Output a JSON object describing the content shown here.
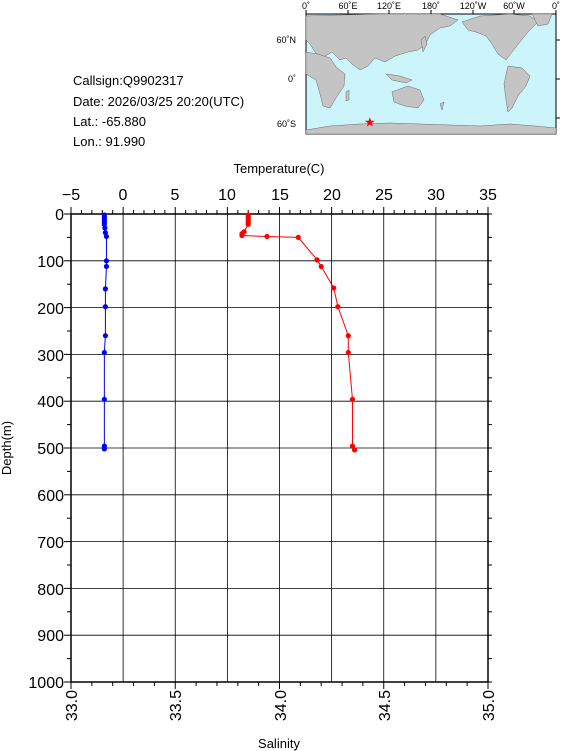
{
  "info": {
    "callsign": "Callsign:Q9902317",
    "date": "Date:  2026/03/25 20:20(UTC)",
    "lat": "Lat.:  -65.880",
    "lon": "Lon.:   91.990"
  },
  "map": {
    "lon_labels": [
      "0˚",
      "60˚E",
      "120˚E",
      "180˚",
      "120˚W",
      "60˚W",
      "0˚"
    ],
    "lat_labels": [
      "60˚N",
      "0˚",
      "60˚S"
    ],
    "marker": {
      "lon": 91.99,
      "lat": -65.88
    },
    "colors": {
      "ocean": "#ccf5fb",
      "land": "#c4c4c4",
      "marker": "#ff0000"
    }
  },
  "chart_data": {
    "type": "line",
    "ylabel": "Depth(m)",
    "ylim": [
      1000,
      0
    ],
    "y_ticks": [
      "0",
      "100",
      "200",
      "300",
      "400",
      "500",
      "600",
      "700",
      "800",
      "900",
      "1000"
    ],
    "temperature_axis": {
      "label": "Temperature(C)",
      "range": [
        -5,
        35
      ],
      "ticks": [
        "−5",
        "0",
        "5",
        "10",
        "15",
        "20",
        "25",
        "30",
        "35"
      ]
    },
    "salinity_axis": {
      "label": "Salinity",
      "range": [
        33.0,
        35.0
      ],
      "ticks": [
        "33.0",
        "33.5",
        "34.0",
        "34.5",
        "35.0"
      ]
    },
    "grid": true,
    "series": [
      {
        "axis": "temperature",
        "color": "#0000ff",
        "points": [
          [
            -1.8,
            2
          ],
          [
            -1.8,
            6
          ],
          [
            -1.8,
            10
          ],
          [
            -1.8,
            14
          ],
          [
            -1.8,
            18
          ],
          [
            -1.8,
            22
          ],
          [
            -1.75,
            30
          ],
          [
            -1.7,
            40
          ],
          [
            -1.6,
            48
          ],
          [
            -1.6,
            100
          ],
          [
            -1.6,
            112
          ],
          [
            -1.7,
            160
          ],
          [
            -1.7,
            198
          ],
          [
            -1.7,
            260
          ],
          [
            -1.8,
            296
          ],
          [
            -1.8,
            396
          ],
          [
            -1.8,
            496
          ],
          [
            -1.8,
            502
          ]
        ]
      },
      {
        "axis": "salinity",
        "color": "#ff0000",
        "points": [
          [
            33.85,
            2
          ],
          [
            33.85,
            6
          ],
          [
            33.85,
            10
          ],
          [
            33.85,
            14
          ],
          [
            33.85,
            18
          ],
          [
            33.85,
            22
          ],
          [
            33.83,
            38
          ],
          [
            33.82,
            42
          ],
          [
            33.82,
            46
          ],
          [
            33.94,
            48
          ],
          [
            34.09,
            50
          ],
          [
            34.18,
            98
          ],
          [
            34.2,
            112
          ],
          [
            34.26,
            158
          ],
          [
            34.28,
            198
          ],
          [
            34.33,
            260
          ],
          [
            34.33,
            296
          ],
          [
            34.35,
            396
          ],
          [
            34.35,
            496
          ],
          [
            34.36,
            504
          ]
        ]
      }
    ]
  }
}
